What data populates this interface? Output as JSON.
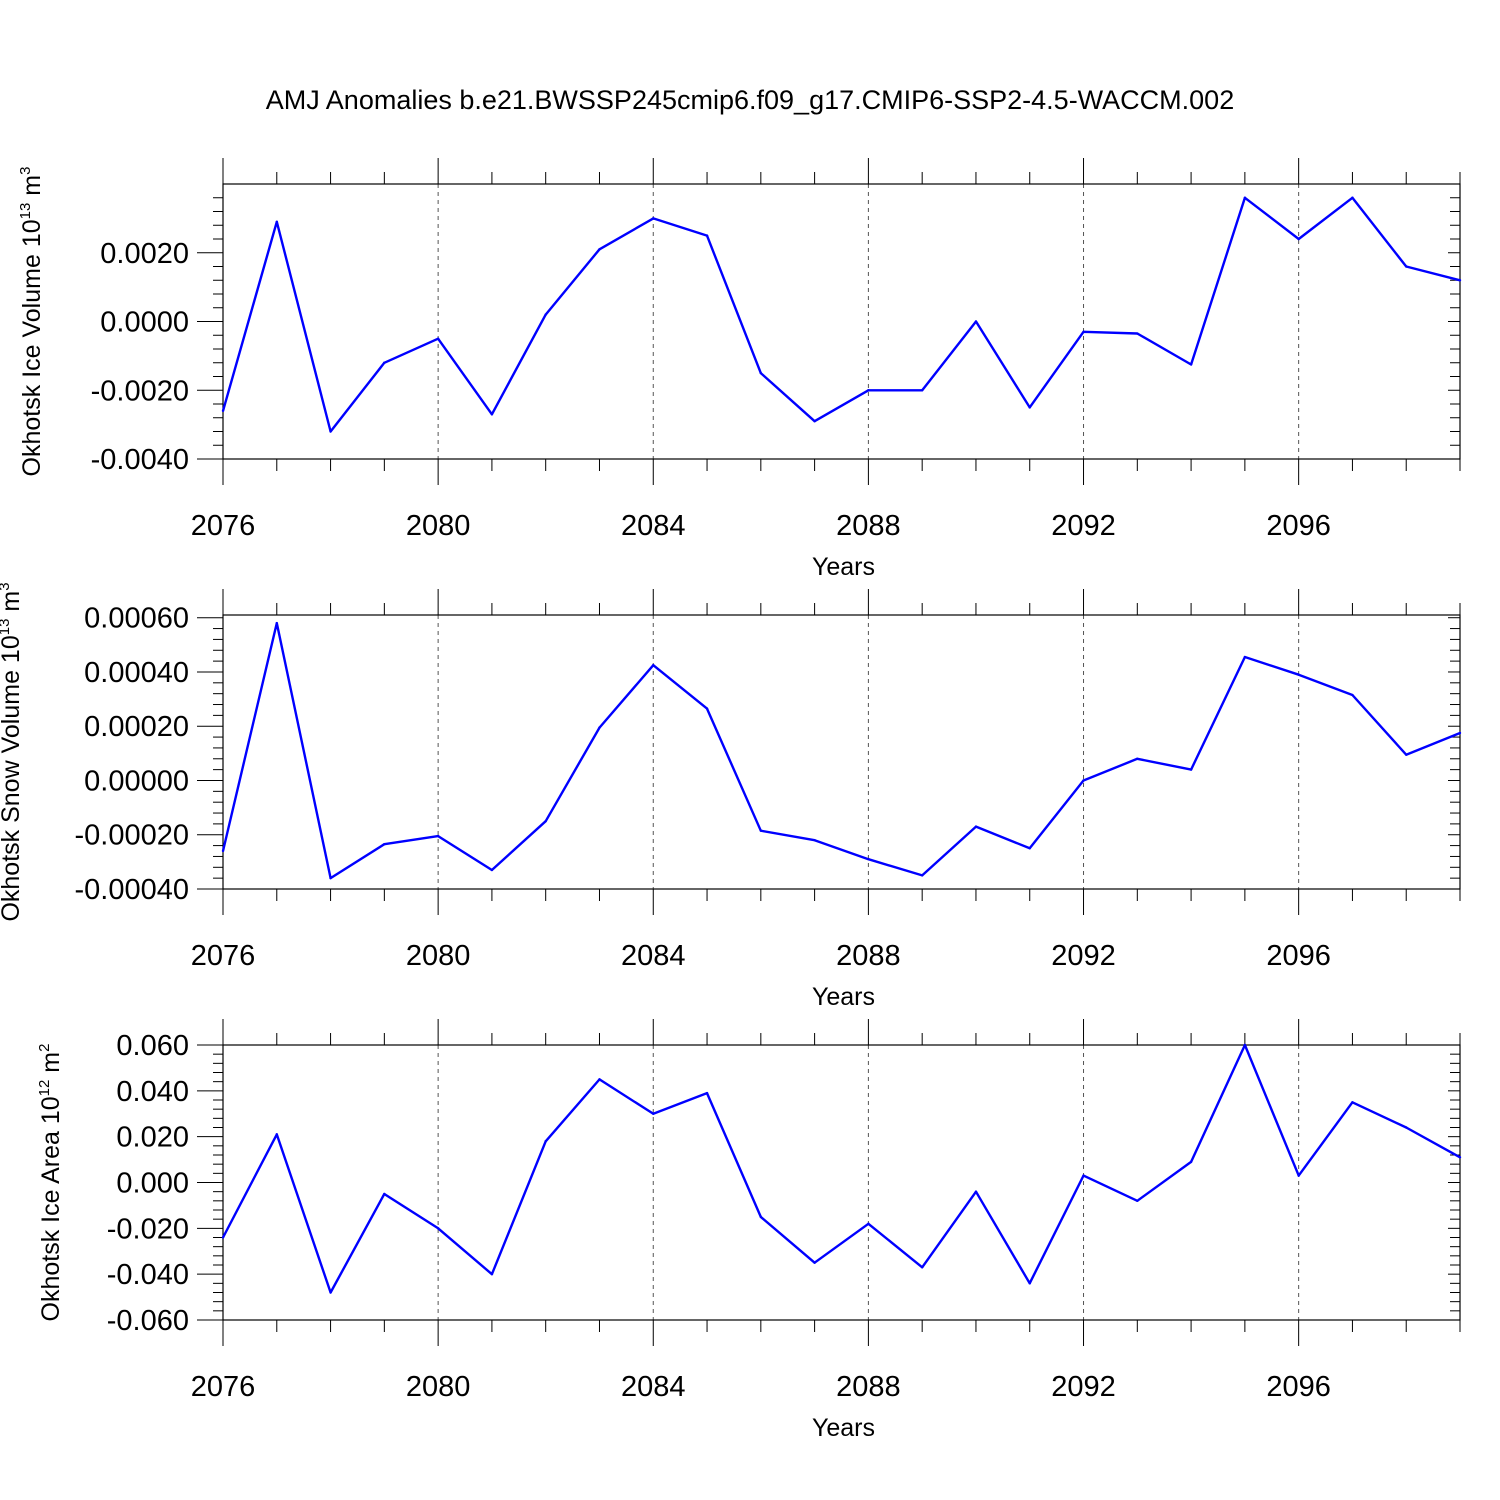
{
  "title": "AMJ Anomalies b.e21.BWSSP245cmip6.f09_g17.CMIP6-SSP2-4.5-WACCM.002",
  "line_color": "#0000ff",
  "chart_data": [
    {
      "type": "line",
      "ylabel_main": "Okhotsk Ice Volume 10",
      "ylabel_exp": "13",
      "ylabel_unit": " m",
      "ylabel_unit_exp": "3",
      "xlabel": "Years",
      "xlim": [
        2076,
        2099
      ],
      "ylim": [
        -0.004,
        0.004
      ],
      "yticks": [
        -0.004,
        -0.002,
        0.0,
        0.002
      ],
      "ytick_labels": [
        "-0.0040",
        "-0.0020",
        "0.0000",
        "0.0020"
      ],
      "xticks": [
        2076,
        2080,
        2084,
        2088,
        2092,
        2096
      ],
      "xtick_labels": [
        "2076",
        "2080",
        "2084",
        "2088",
        "2092",
        "2096"
      ],
      "x": [
        2076,
        2077,
        2078,
        2079,
        2080,
        2081,
        2082,
        2083,
        2084,
        2085,
        2086,
        2087,
        2088,
        2089,
        2090,
        2091,
        2092,
        2093,
        2094,
        2095,
        2096,
        2097,
        2098,
        2099
      ],
      "values": [
        -0.0026,
        0.0029,
        -0.0032,
        -0.0012,
        -0.0005,
        -0.0027,
        0.0002,
        0.0021,
        0.003,
        0.0025,
        -0.0015,
        -0.0029,
        -0.002,
        -0.002,
        0.0,
        -0.0025,
        -0.0003,
        -0.00035,
        -0.00125,
        0.0036,
        0.0024,
        0.0036,
        0.0016,
        0.0012
      ]
    },
    {
      "type": "line",
      "ylabel_main": "Okhotsk Snow Volume 10",
      "ylabel_exp": "13",
      "ylabel_unit": " m",
      "ylabel_unit_exp": "3",
      "xlabel": "Years",
      "xlim": [
        2076,
        2099
      ],
      "ylim": [
        -0.0004,
        0.00061
      ],
      "yticks": [
        -0.0004,
        -0.0002,
        0.0,
        0.0002,
        0.0004,
        0.0006
      ],
      "ytick_labels": [
        "-0.00040",
        "-0.00020",
        "0.00000",
        "0.00020",
        "0.00040",
        "0.00060"
      ],
      "xticks": [
        2076,
        2080,
        2084,
        2088,
        2092,
        2096
      ],
      "xtick_labels": [
        "2076",
        "2080",
        "2084",
        "2088",
        "2092",
        "2096"
      ],
      "x": [
        2076,
        2077,
        2078,
        2079,
        2080,
        2081,
        2082,
        2083,
        2084,
        2085,
        2086,
        2087,
        2088,
        2089,
        2090,
        2091,
        2092,
        2093,
        2094,
        2095,
        2096,
        2097,
        2098,
        2099
      ],
      "values": [
        -0.00026,
        0.00058,
        -0.00036,
        -0.000235,
        -0.000205,
        -0.00033,
        -0.00015,
        0.000195,
        0.000425,
        0.000265,
        -0.000185,
        -0.00022,
        -0.00029,
        -0.00035,
        -0.00017,
        -0.00025,
        0.0,
        8e-05,
        4e-05,
        0.000455,
        0.00039,
        0.000315,
        9.5e-05,
        0.000175
      ]
    },
    {
      "type": "line",
      "ylabel_main": "Okhotsk Ice Area 10",
      "ylabel_exp": "12",
      "ylabel_unit": " m",
      "ylabel_unit_exp": "2",
      "xlabel": "Years",
      "xlim": [
        2076,
        2099
      ],
      "ylim": [
        -0.06,
        0.06
      ],
      "yticks": [
        -0.06,
        -0.04,
        -0.02,
        0.0,
        0.02,
        0.04,
        0.06
      ],
      "ytick_labels": [
        "-0.060",
        "-0.040",
        "-0.020",
        "0.000",
        "0.020",
        "0.040",
        "0.060"
      ],
      "xticks": [
        2076,
        2080,
        2084,
        2088,
        2092,
        2096
      ],
      "xtick_labels": [
        "2076",
        "2080",
        "2084",
        "2088",
        "2092",
        "2096"
      ],
      "x": [
        2076,
        2077,
        2078,
        2079,
        2080,
        2081,
        2082,
        2083,
        2084,
        2085,
        2086,
        2087,
        2088,
        2089,
        2090,
        2091,
        2092,
        2093,
        2094,
        2095,
        2096,
        2097,
        2098,
        2099
      ],
      "values": [
        -0.024,
        0.021,
        -0.048,
        -0.005,
        -0.02,
        -0.04,
        0.018,
        0.045,
        0.03,
        0.039,
        -0.015,
        -0.035,
        -0.018,
        -0.037,
        -0.004,
        -0.044,
        0.003,
        -0.008,
        0.009,
        0.06,
        0.003,
        0.035,
        0.024,
        0.011
      ]
    }
  ]
}
